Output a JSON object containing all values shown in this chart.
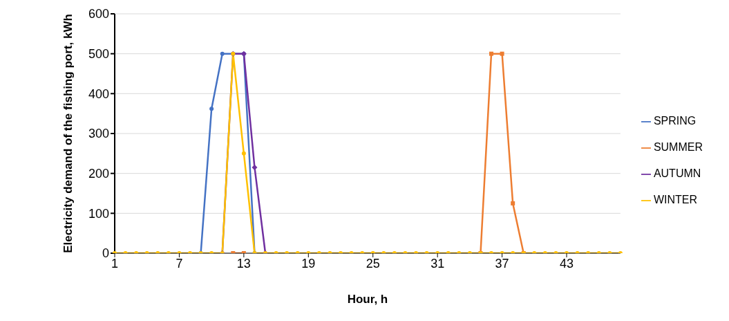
{
  "chart_data": {
    "type": "line",
    "xlabel": "Hour, h",
    "ylabel": "Electricity demand of the fishing port, kWh",
    "categories": [
      "1",
      null,
      null,
      null,
      null,
      null,
      "7",
      null,
      null,
      null,
      null,
      null,
      "13",
      null,
      null,
      null,
      null,
      null,
      "19",
      null,
      null,
      null,
      null,
      null,
      "25",
      null,
      null,
      null,
      null,
      null,
      "31",
      null,
      null,
      null,
      null,
      null,
      "37",
      null,
      null,
      null,
      null,
      null,
      "43",
      null,
      null,
      null,
      null,
      null
    ],
    "series": [
      {
        "name": "SPRING",
        "color": "#4472c4",
        "marker": "circle",
        "values": [
          null,
          null,
          null,
          null,
          null,
          null,
          null,
          null,
          0,
          362,
          500,
          500,
          500,
          0,
          null,
          null,
          null,
          null,
          null,
          null,
          null,
          null,
          null,
          null,
          null,
          null,
          null,
          null,
          null,
          null,
          null,
          null,
          null,
          null,
          null,
          null,
          null,
          null,
          null,
          null,
          null,
          null,
          null,
          null,
          null,
          null,
          null,
          null
        ]
      },
      {
        "name": "SUMMER",
        "color": "#ed7d31",
        "marker": "square",
        "values": [
          null,
          null,
          null,
          null,
          null,
          null,
          null,
          null,
          null,
          null,
          null,
          0,
          0,
          null,
          null,
          null,
          null,
          null,
          null,
          null,
          null,
          null,
          null,
          null,
          null,
          null,
          null,
          null,
          null,
          null,
          null,
          null,
          null,
          null,
          0,
          500,
          500,
          125,
          0,
          null,
          null,
          null,
          null,
          null,
          null,
          null,
          null,
          null
        ]
      },
      {
        "name": "AUTUMN",
        "color": "#7030a0",
        "marker": "diamond",
        "values": [
          null,
          null,
          null,
          null,
          null,
          null,
          null,
          null,
          null,
          null,
          0,
          500,
          500,
          215,
          0,
          null,
          null,
          null,
          null,
          null,
          null,
          null,
          null,
          null,
          null,
          null,
          null,
          null,
          null,
          null,
          null,
          null,
          null,
          null,
          null,
          null,
          null,
          null,
          null,
          null,
          null,
          null,
          null,
          null,
          null,
          null,
          null,
          null
        ]
      },
      {
        "name": "WINTER",
        "color": "#ffc000",
        "marker": "circle",
        "values": [
          0,
          0,
          0,
          0,
          0,
          0,
          0,
          0,
          0,
          0,
          0,
          500,
          250,
          0,
          0,
          0,
          0,
          0,
          0,
          0,
          0,
          0,
          0,
          0,
          0,
          0,
          0,
          0,
          0,
          0,
          0,
          0,
          0,
          0,
          0,
          0,
          0,
          0,
          0,
          0,
          0,
          0,
          0,
          0,
          0,
          0,
          0,
          0
        ]
      }
    ],
    "ylim": [
      0,
      600
    ],
    "yticks": [
      0,
      100,
      200,
      300,
      400,
      500,
      600
    ],
    "grid": "y",
    "legend": "right"
  }
}
